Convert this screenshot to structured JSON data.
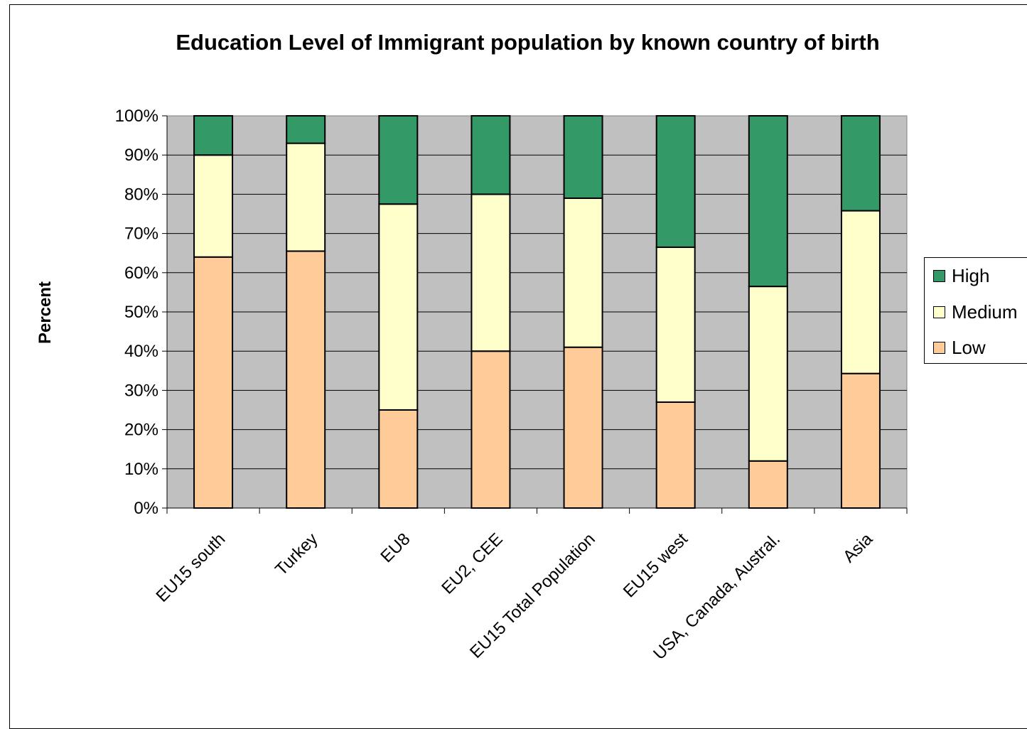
{
  "chart_data": {
    "type": "bar",
    "stacked": true,
    "normalized": true,
    "title": "Education Level of Immigrant population by known country of birth",
    "ylabel": "Percent",
    "xlabel": "",
    "ylim": [
      0,
      100
    ],
    "y_ticks": [
      "0%",
      "10%",
      "20%",
      "30%",
      "40%",
      "50%",
      "60%",
      "70%",
      "80%",
      "90%",
      "100%"
    ],
    "grid": true,
    "legend_position": "right",
    "categories": [
      "EU15 south",
      "Turkey",
      "EU8",
      "EU2, CEE",
      "EU15 Total Population",
      "EU15 west",
      "USA, Canada, Austral.",
      "Asia"
    ],
    "series": [
      {
        "name": "Low",
        "color": "#FFCC99",
        "values": [
          64,
          65.5,
          25,
          40,
          41,
          27,
          12,
          34.3
        ]
      },
      {
        "name": "Medium",
        "color": "#FFFFCC",
        "values": [
          26,
          27.5,
          52.5,
          40,
          38,
          39.5,
          44.5,
          41.5
        ]
      },
      {
        "name": "High",
        "color": "#339966",
        "values": [
          10,
          7,
          22.5,
          20,
          21,
          33.5,
          43.5,
          24.2
        ]
      }
    ],
    "plot_background": "#C0C0C0"
  },
  "legend": {
    "items": [
      {
        "label": "High",
        "color": "#339966"
      },
      {
        "label": "Medium",
        "color": "#FFFFCC"
      },
      {
        "label": "Low",
        "color": "#FFCC99"
      }
    ]
  }
}
